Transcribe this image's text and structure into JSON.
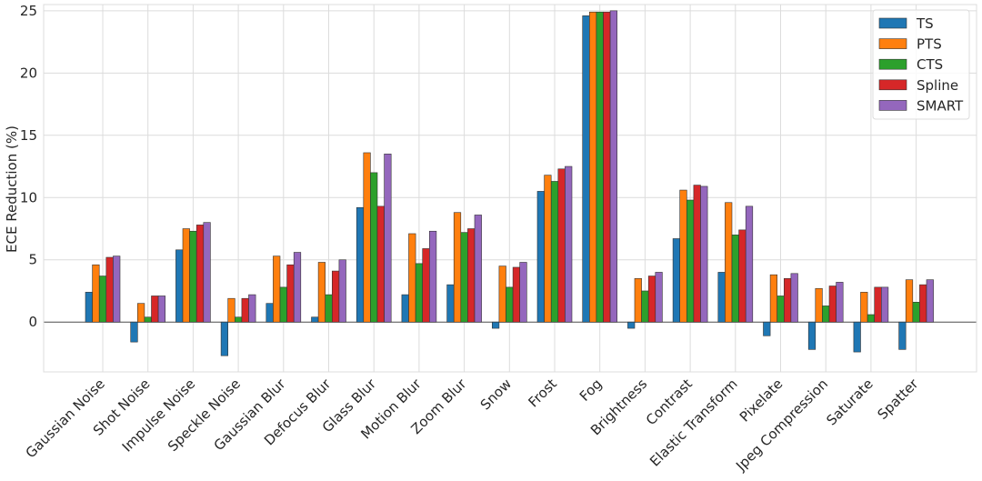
{
  "chart_data": {
    "type": "bar",
    "title": "",
    "xlabel": "",
    "ylabel": "ECE Reduction (%)",
    "ylim": [
      -4,
      25.5
    ],
    "yticks": [
      0,
      5,
      10,
      15,
      20,
      25
    ],
    "grid": true,
    "legend_position": "top-right",
    "categories": [
      "Gaussian Noise",
      "Shot Noise",
      "Impulse Noise",
      "Speckle Noise",
      "Gaussian Blur",
      "Defocus Blur",
      "Glass Blur",
      "Motion Blur",
      "Zoom Blur",
      "Snow",
      "Frost",
      "Fog",
      "Brightness",
      "Contrast",
      "Elastic Transform",
      "Pixelate",
      "Jpeg Compression",
      "Saturate",
      "Spatter"
    ],
    "series": [
      {
        "name": "TS",
        "color": "#1f77b4",
        "values": [
          2.4,
          -1.6,
          5.8,
          -2.7,
          1.5,
          0.4,
          9.2,
          2.2,
          3.0,
          -0.5,
          10.5,
          24.6,
          -0.5,
          6.7,
          4.0,
          -1.1,
          -2.2,
          -2.4,
          -2.2
        ]
      },
      {
        "name": "PTS",
        "color": "#ff7f0e",
        "values": [
          4.6,
          1.5,
          7.5,
          1.9,
          5.3,
          4.8,
          13.6,
          7.1,
          8.8,
          4.5,
          11.8,
          24.9,
          3.5,
          10.6,
          9.6,
          3.8,
          2.7,
          2.4,
          3.4
        ]
      },
      {
        "name": "CTS",
        "color": "#2ca02c",
        "values": [
          3.7,
          0.4,
          7.3,
          0.4,
          2.8,
          2.2,
          12.0,
          4.7,
          7.2,
          2.8,
          11.3,
          24.9,
          2.5,
          9.8,
          7.0,
          2.1,
          1.3,
          0.6,
          1.6
        ]
      },
      {
        "name": "Spline",
        "color": "#d62728",
        "values": [
          5.2,
          2.1,
          7.8,
          1.9,
          4.6,
          4.1,
          9.3,
          5.9,
          7.5,
          4.4,
          12.3,
          24.9,
          3.7,
          11.0,
          7.4,
          3.5,
          2.9,
          2.8,
          3.0
        ]
      },
      {
        "name": "SMART",
        "color": "#9467bd",
        "values": [
          5.3,
          2.1,
          8.0,
          2.2,
          5.6,
          5.0,
          13.5,
          7.3,
          8.6,
          4.8,
          12.5,
          25.0,
          4.0,
          10.9,
          9.3,
          3.9,
          3.2,
          2.8,
          3.4
        ]
      }
    ]
  }
}
